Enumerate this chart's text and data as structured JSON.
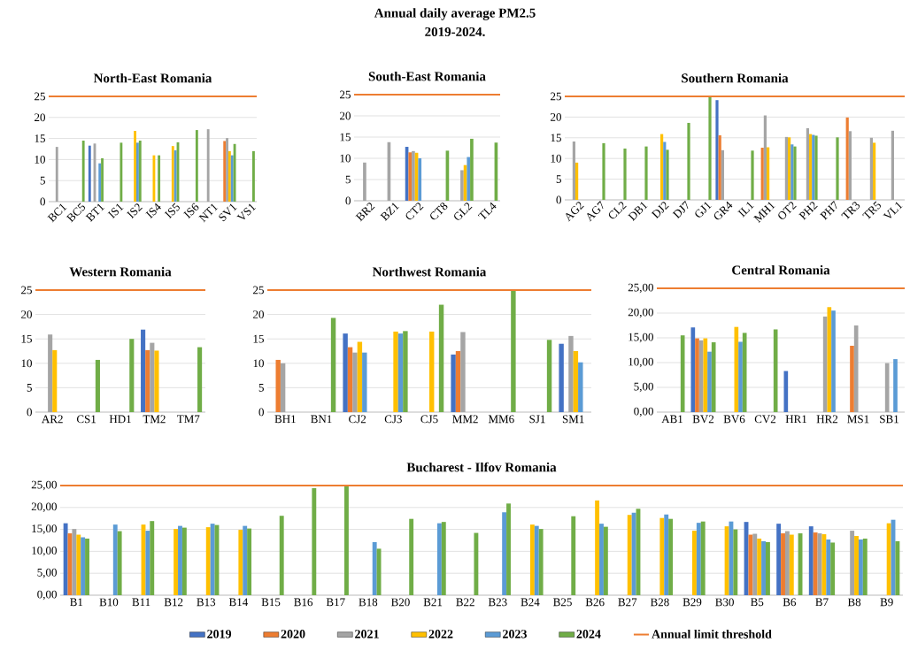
{
  "chart_data": [
    {
      "type": "other",
      "title": "Annual daily average PM2.5",
      "subtitle": "2019-2024."
    },
    {
      "type": "bar",
      "title": "North-East Romania",
      "categories": [
        "BC1",
        "BC5",
        "BT1",
        "IS1",
        "IS2",
        "IS4",
        "IS5",
        "IS6",
        "NT1",
        "SV1",
        "VS1"
      ],
      "ylim": [
        0,
        25
      ],
      "yticks": [
        0,
        5,
        10,
        15,
        20,
        25
      ],
      "grid": "y",
      "ref_lines": [
        {
          "axis": "y",
          "value": 25,
          "color": "#ed7d31"
        }
      ],
      "series": [
        {
          "color": "#4472c4",
          "values": [
            null,
            null,
            13.3,
            null,
            null,
            null,
            null,
            null,
            null,
            null,
            null
          ]
        },
        {
          "color": "#ed7d31",
          "values": [
            null,
            null,
            null,
            null,
            null,
            null,
            null,
            null,
            null,
            14.4,
            null
          ]
        },
        {
          "color": "#a5a5a5",
          "values": [
            13,
            null,
            13.8,
            null,
            null,
            null,
            null,
            null,
            17.2,
            15.1,
            null
          ]
        },
        {
          "color": "#ffc000",
          "values": [
            null,
            null,
            null,
            null,
            16.8,
            11,
            13.2,
            null,
            null,
            12,
            null
          ]
        },
        {
          "color": "#5b9bd5",
          "values": [
            null,
            null,
            9.1,
            null,
            14,
            null,
            12.2,
            null,
            null,
            11,
            null
          ]
        },
        {
          "color": "#70ad47",
          "values": [
            null,
            14.5,
            10.3,
            14,
            14.5,
            11,
            14.1,
            17,
            null,
            13.7,
            12
          ]
        }
      ]
    },
    {
      "type": "bar",
      "title": "South-East Romania",
      "categories": [
        "BR2",
        "BZ1",
        "CT2",
        "CT8",
        "GL2",
        "TL4"
      ],
      "ylim": [
        0,
        25
      ],
      "yticks": [
        0,
        5,
        10,
        15,
        20,
        25
      ],
      "grid": "y",
      "ref_lines": [
        {
          "axis": "y",
          "value": 25,
          "color": "#ed7d31"
        }
      ],
      "series": [
        {
          "color": "#4472c4",
          "values": [
            null,
            null,
            12.7,
            null,
            null,
            null
          ]
        },
        {
          "color": "#ed7d31",
          "values": [
            null,
            null,
            11.4,
            null,
            null,
            null
          ]
        },
        {
          "color": "#a5a5a5",
          "values": [
            9,
            13.8,
            11.7,
            null,
            7.2,
            null
          ]
        },
        {
          "color": "#ffc000",
          "values": [
            null,
            null,
            11.3,
            null,
            8.4,
            null
          ]
        },
        {
          "color": "#5b9bd5",
          "values": [
            null,
            null,
            10,
            null,
            10.3,
            null
          ]
        },
        {
          "color": "#70ad47",
          "values": [
            null,
            null,
            null,
            11.8,
            14.6,
            13.7
          ]
        }
      ]
    },
    {
      "type": "bar",
      "title": "Southern Romania",
      "categories": [
        "AG2",
        "AG7",
        "CL2",
        "DB1",
        "DJ2",
        "DJ7",
        "GJ1",
        "GR4",
        "IL1",
        "MH1",
        "OT2",
        "PH2",
        "PH7",
        "TR3",
        "TR5",
        "VL1"
      ],
      "ylim": [
        0,
        25
      ],
      "yticks": [
        0,
        5,
        10,
        15,
        20,
        25
      ],
      "grid": "y",
      "ref_lines": [
        {
          "axis": "y",
          "value": 25,
          "color": "#ed7d31"
        }
      ],
      "series": [
        {
          "color": "#4472c4",
          "values": [
            null,
            null,
            null,
            null,
            null,
            null,
            null,
            24.1,
            null,
            null,
            null,
            null,
            null,
            null,
            null,
            null
          ]
        },
        {
          "color": "#ed7d31",
          "values": [
            null,
            null,
            null,
            null,
            null,
            null,
            null,
            15.6,
            null,
            12.6,
            null,
            null,
            null,
            19.9,
            null,
            null
          ]
        },
        {
          "color": "#a5a5a5",
          "values": [
            14.1,
            null,
            null,
            null,
            null,
            null,
            null,
            12,
            null,
            20.4,
            15.2,
            17.3,
            null,
            16.6,
            15,
            16.7
          ]
        },
        {
          "color": "#ffc000",
          "values": [
            9,
            null,
            null,
            null,
            15.9,
            null,
            null,
            null,
            null,
            12.7,
            15.1,
            15.9,
            null,
            null,
            13.8,
            null
          ]
        },
        {
          "color": "#5b9bd5",
          "values": [
            null,
            null,
            null,
            null,
            14,
            null,
            null,
            null,
            null,
            null,
            13.4,
            15.7,
            null,
            null,
            null,
            null
          ]
        },
        {
          "color": "#70ad47",
          "values": [
            null,
            13.7,
            12.4,
            12.9,
            12.1,
            18.6,
            25,
            null,
            11.9,
            null,
            12.9,
            15.5,
            15.1,
            null,
            null,
            null
          ]
        }
      ]
    },
    {
      "type": "bar",
      "title": "Western Romania",
      "categories": [
        "AR2",
        "CS1",
        "HD1",
        "TM2",
        "TM7"
      ],
      "ylim": [
        0,
        25
      ],
      "yticks": [
        0,
        5,
        10,
        15,
        20,
        25
      ],
      "grid": "y",
      "ref_lines": [
        {
          "axis": "y",
          "value": 25,
          "color": "#ed7d31"
        }
      ],
      "series": [
        {
          "color": "#4472c4",
          "values": [
            null,
            null,
            null,
            16.9,
            null
          ]
        },
        {
          "color": "#ed7d31",
          "values": [
            null,
            null,
            null,
            12.7,
            null
          ]
        },
        {
          "color": "#a5a5a5",
          "values": [
            15.9,
            null,
            null,
            14.2,
            null
          ]
        },
        {
          "color": "#ffc000",
          "values": [
            12.7,
            null,
            null,
            12.6,
            null
          ]
        },
        {
          "color": "#70ad47",
          "values": [
            null,
            10.7,
            15,
            null,
            13.3
          ]
        }
      ]
    },
    {
      "type": "bar",
      "title": "Northwest Romania",
      "categories": [
        "BH1",
        "BN1",
        "CJ2",
        "CJ3",
        "CJ5",
        "MM2",
        "MM6",
        "SJ1",
        "SM1"
      ],
      "ylim": [
        0,
        25
      ],
      "yticks": [
        0,
        5,
        10,
        15,
        20,
        25
      ],
      "grid": "y",
      "ref_lines": [
        {
          "axis": "y",
          "value": 25,
          "color": "#ed7d31"
        }
      ],
      "series": [
        {
          "color": "#4472c4",
          "values": [
            null,
            null,
            16.1,
            null,
            null,
            11.8,
            null,
            null,
            14
          ]
        },
        {
          "color": "#ed7d31",
          "values": [
            10.7,
            null,
            13.3,
            null,
            null,
            12.5,
            null,
            null,
            null
          ]
        },
        {
          "color": "#a5a5a5",
          "values": [
            10,
            null,
            12.2,
            null,
            null,
            16.4,
            null,
            null,
            15.6
          ]
        },
        {
          "color": "#ffc000",
          "values": [
            null,
            null,
            14.4,
            16.5,
            16.5,
            null,
            null,
            null,
            12.5
          ]
        },
        {
          "color": "#5b9bd5",
          "values": [
            null,
            null,
            12.2,
            16.1,
            null,
            null,
            null,
            null,
            10.2
          ]
        },
        {
          "color": "#70ad47",
          "values": [
            null,
            19.3,
            null,
            16.6,
            22,
            null,
            25,
            14.8,
            null
          ]
        }
      ]
    },
    {
      "type": "bar",
      "title": "Central Romania",
      "categories": [
        "AB1",
        "BV2",
        "BV6",
        "CV2",
        "HR1",
        "HR2",
        "MS1",
        "SB1"
      ],
      "ylim": [
        0,
        25
      ],
      "yticks": [
        {
          "value": 0,
          "label": "0,00"
        },
        {
          "value": 5,
          "label": "5,00"
        },
        {
          "value": 10,
          "label": "10,00"
        },
        {
          "value": 15,
          "label": "15,00"
        },
        {
          "value": 20,
          "label": "20,00"
        },
        {
          "value": 25,
          "label": "25,00"
        }
      ],
      "grid": "y",
      "ref_lines": [
        {
          "axis": "y",
          "value": 25,
          "color": "#ed7d31"
        }
      ],
      "series": [
        {
          "color": "#4472c4",
          "values": [
            null,
            17.1,
            null,
            null,
            8.3,
            null,
            null,
            null
          ]
        },
        {
          "color": "#ed7d31",
          "values": [
            null,
            14.9,
            null,
            null,
            null,
            null,
            13.4,
            null
          ]
        },
        {
          "color": "#a5a5a5",
          "values": [
            null,
            14.5,
            null,
            null,
            null,
            19.3,
            17.5,
            9.9
          ]
        },
        {
          "color": "#ffc000",
          "values": [
            null,
            14.9,
            17.2,
            null,
            null,
            21.2,
            null,
            null
          ]
        },
        {
          "color": "#5b9bd5",
          "values": [
            null,
            12.2,
            14.2,
            null,
            null,
            20.5,
            null,
            10.7
          ]
        },
        {
          "color": "#70ad47",
          "values": [
            15.5,
            14.1,
            16,
            16.7,
            null,
            null,
            null,
            null
          ]
        }
      ]
    },
    {
      "type": "bar",
      "title": "Bucharest - Ilfov Romania",
      "categories": [
        "B1",
        "B10",
        "B11",
        "B12",
        "B13",
        "B14",
        "B15",
        "B16",
        "B17",
        "B18",
        "B20",
        "B21",
        "B22",
        "B23",
        "B24",
        "B25",
        "B26",
        "B27",
        "B28",
        "B29",
        "B30",
        "B5",
        "B6",
        "B7",
        "B8",
        "B9"
      ],
      "ylim": [
        0,
        25
      ],
      "yticks": [
        {
          "value": 0,
          "label": "0,00"
        },
        {
          "value": 5,
          "label": "5,00"
        },
        {
          "value": 10,
          "label": "10,00"
        },
        {
          "value": 15,
          "label": "15,00"
        },
        {
          "value": 20,
          "label": "20,00"
        },
        {
          "value": 25,
          "label": "25,00"
        }
      ],
      "grid": "y",
      "legend": "bottom",
      "ref_lines": [
        {
          "axis": "y",
          "value": 25,
          "color": "#ed7d31",
          "label": "Annual limit threshold"
        }
      ],
      "series": [
        {
          "name": "2019",
          "color": "#4472c4",
          "values": [
            16.4,
            null,
            null,
            null,
            null,
            null,
            null,
            null,
            null,
            null,
            null,
            null,
            null,
            null,
            null,
            null,
            null,
            null,
            null,
            null,
            null,
            16.7,
            16.3,
            15.7,
            null,
            null
          ]
        },
        {
          "name": "2020",
          "color": "#ed7d31",
          "values": [
            14.1,
            null,
            null,
            null,
            null,
            null,
            null,
            null,
            null,
            null,
            null,
            null,
            null,
            null,
            null,
            null,
            null,
            null,
            null,
            null,
            null,
            13.8,
            14.1,
            14.3,
            null,
            null
          ]
        },
        {
          "name": "2021",
          "color": "#a5a5a5",
          "values": [
            15.1,
            null,
            null,
            null,
            null,
            null,
            null,
            null,
            null,
            null,
            null,
            null,
            null,
            null,
            null,
            null,
            null,
            null,
            null,
            null,
            null,
            14.0,
            14.6,
            14.1,
            14.7,
            null
          ]
        },
        {
          "name": "2022",
          "color": "#ffc000",
          "values": [
            13.8,
            null,
            16.1,
            15.1,
            15.5,
            14.9,
            null,
            null,
            null,
            null,
            null,
            null,
            null,
            null,
            16.1,
            null,
            21.6,
            18.3,
            17.6,
            14.7,
            15.7,
            12.9,
            13.8,
            13.9,
            13.5,
            16.4
          ]
        },
        {
          "name": "2023",
          "color": "#5b9bd5",
          "values": [
            13.2,
            16.1,
            14.7,
            15.8,
            16.3,
            15.8,
            null,
            null,
            null,
            12.1,
            null,
            16.4,
            null,
            18.9,
            15.8,
            null,
            16.3,
            18.8,
            18.4,
            16.5,
            16.8,
            12.3,
            null,
            12.7,
            12.7,
            17.2
          ]
        },
        {
          "name": "2024",
          "color": "#70ad47",
          "values": [
            12.9,
            14.6,
            16.9,
            15.4,
            16.0,
            15.2,
            18.1,
            24.4,
            25,
            10.6,
            17.4,
            16.7,
            14.2,
            20.9,
            15.1,
            18.0,
            15.6,
            19.7,
            17.4,
            16.8,
            15.0,
            12.1,
            14.1,
            12.0,
            12.9,
            12.3
          ]
        }
      ]
    }
  ]
}
